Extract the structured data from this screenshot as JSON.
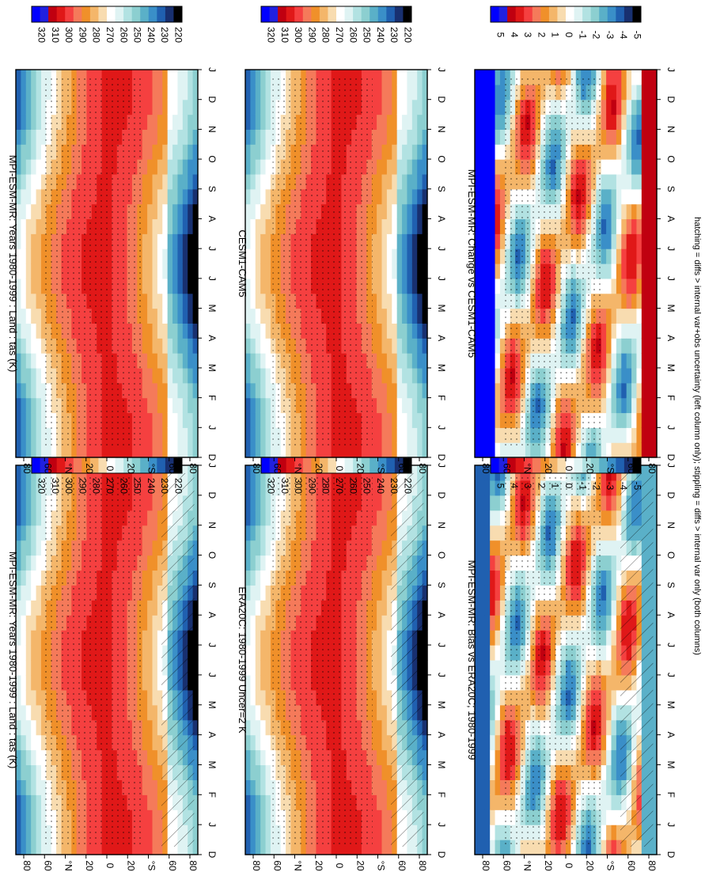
{
  "footnote": "hatching = diffs > internal var+obs uncertainty (left column only); stippling = diffs > internal var only (both columns)",
  "chart_data": [
    {
      "type": "heatmap",
      "title": "MPI-ESM-MR: Years 1980-1999 : Land : tas (K)",
      "x_tick_labels": [
        "D",
        "J",
        "F",
        "M",
        "A",
        "M",
        "J",
        "J",
        "A",
        "S",
        "O",
        "N",
        "D",
        "J"
      ],
      "y_tick_labels": [
        "80",
        "60",
        "°N",
        "20",
        "0",
        "20",
        "°S",
        "60",
        "80"
      ],
      "colorbar_labels": [
        "320",
        "310",
        "300",
        "290",
        "280",
        "270",
        "260",
        "250",
        "240",
        "230",
        "220"
      ],
      "field": "absolute",
      "hatching": true
    },
    {
      "type": "heatmap",
      "title": "MPI-ESM-MR: Years 1980-1999 : Land : tas (K)",
      "x_tick_labels": [
        "D",
        "J",
        "F",
        "M",
        "A",
        "M",
        "J",
        "J",
        "A",
        "S",
        "O",
        "N",
        "D",
        "J"
      ],
      "y_tick_labels": [
        "80",
        "60",
        "°N",
        "20",
        "0",
        "20",
        "°S",
        "60",
        "80"
      ],
      "colorbar_labels": [
        "320",
        "310",
        "300",
        "290",
        "280",
        "270",
        "260",
        "250",
        "240",
        "230",
        "220"
      ],
      "field": "absolute",
      "hatching": false
    },
    {
      "type": "heatmap",
      "title": "ERA20C: 1980-1999 Uncer=2 K",
      "x_tick_labels": [
        "D",
        "J",
        "F",
        "M",
        "A",
        "M",
        "J",
        "J",
        "A",
        "S",
        "O",
        "N",
        "D",
        "J"
      ],
      "y_tick_labels": [
        "80",
        "60",
        "°N",
        "20",
        "0",
        "20",
        "°S",
        "60",
        "80"
      ],
      "colorbar_labels": [
        "320",
        "310",
        "300",
        "290",
        "280",
        "270",
        "260",
        "250",
        "240",
        "230",
        "220"
      ],
      "field": "absolute",
      "hatching": true
    },
    {
      "type": "heatmap",
      "title": "CESM1-CAM5",
      "x_tick_labels": [
        "D",
        "J",
        "F",
        "M",
        "A",
        "M",
        "J",
        "J",
        "A",
        "S",
        "O",
        "N",
        "D",
        "J"
      ],
      "y_tick_labels": [
        "80",
        "60",
        "°N",
        "20",
        "0",
        "20",
        "°S",
        "60",
        "80"
      ],
      "colorbar_labels": [
        "320",
        "310",
        "300",
        "290",
        "280",
        "270",
        "260",
        "250",
        "240",
        "230",
        "220"
      ],
      "field": "absolute",
      "hatching": false
    },
    {
      "type": "heatmap",
      "title": "MPI-ESM-MR: Bias vs ERA20C; 1980-1999",
      "x_tick_labels": [
        "D",
        "J",
        "F",
        "M",
        "A",
        "M",
        "J",
        "J",
        "A",
        "S",
        "O",
        "N",
        "D",
        "J"
      ],
      "y_tick_labels": [
        "80",
        "60",
        "°N",
        "20",
        "0",
        "20",
        "°S",
        "60",
        "80"
      ],
      "colorbar_labels": [
        "5",
        "4",
        "3",
        "2",
        "1",
        "0",
        "-1",
        "-2",
        "-3",
        "-4",
        "-5"
      ],
      "field": "difference",
      "hatching": true
    },
    {
      "type": "heatmap",
      "title": "MPI-ESM-MR: Change vs CESM1-CAM5",
      "x_tick_labels": [
        "D",
        "J",
        "F",
        "M",
        "A",
        "M",
        "J",
        "J",
        "A",
        "S",
        "O",
        "N",
        "D",
        "J"
      ],
      "y_tick_labels": [
        "80",
        "60",
        "°N",
        "20",
        "0",
        "20",
        "°S",
        "60",
        "80"
      ],
      "colorbar_labels": [
        "5",
        "4",
        "3",
        "2",
        "1",
        "0",
        "-1",
        "-2",
        "-3",
        "-4",
        "-5"
      ],
      "field": "difference",
      "hatching": false
    }
  ],
  "colors": {
    "scale": [
      "#0000ff",
      "#2020e0",
      "#c00010",
      "#e01818",
      "#f54040",
      "#f57a5a",
      "#f0902a",
      "#f4b66a",
      "#f8dcb0",
      "#ffffff",
      "#dff3f3",
      "#b2e2e2",
      "#8ccfd0",
      "#5ab0c8",
      "#3a8fc8",
      "#2060b0",
      "#183070",
      "#000000"
    ]
  }
}
